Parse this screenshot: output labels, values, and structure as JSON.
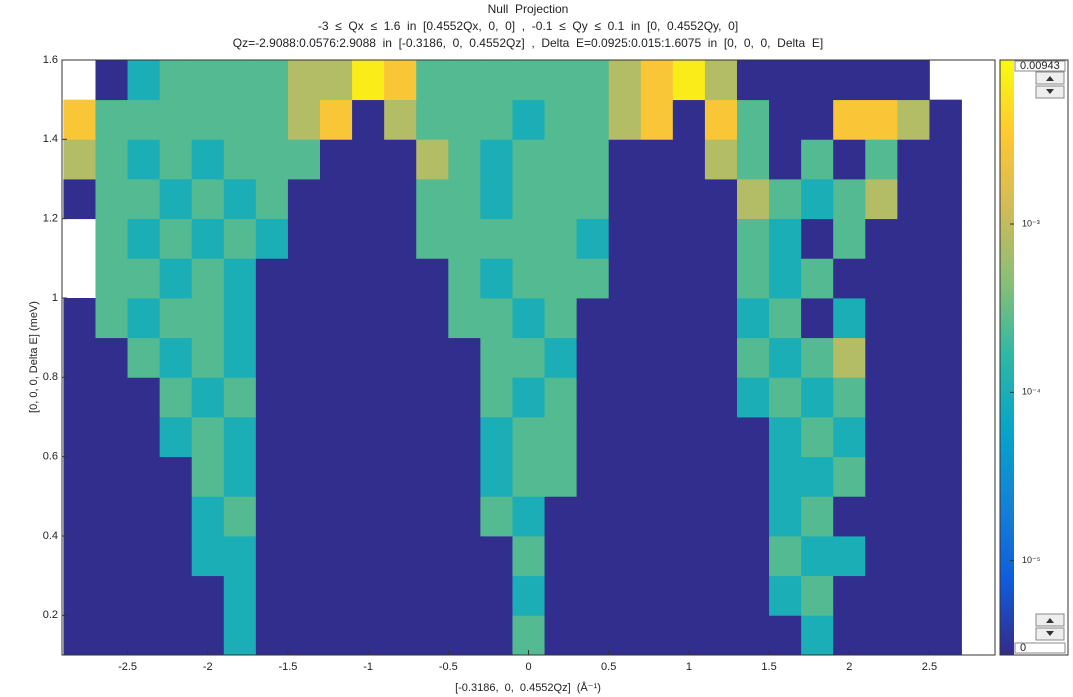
{
  "chart_data": {
    "type": "heatmap",
    "title": "Null  Projection",
    "subtitle": [
      "-3  ≤  Qx  ≤  1.6  in  [0.4552Qx,  0,  0]  ,  -0.1  ≤  Qy  ≤  0.1  in  [0,  0.4552Qy,  0]",
      "Qz=-2.9088:0.0576:2.9088  in  [-0.3186,  0,  0.4552Qz]  ,  Delta  E=0.0925:0.015:1.6075  in  [0,  0,  0,  Delta  E]"
    ],
    "x_label": "[-0.3186,  0,  0.4552Qz]  (Å⁻¹)",
    "y_label": "[0, 0, 0, Delta E] (meV)",
    "xlim": [
      -2.9088,
      2.9088
    ],
    "ylim": [
      0.1,
      1.6
    ],
    "xticks": [
      -2.5,
      -2,
      -1.5,
      -1,
      -0.5,
      0,
      0.5,
      1,
      1.5,
      2,
      2.5
    ],
    "yticks": [
      0.2,
      0.4,
      0.6,
      0.8,
      1,
      1.2,
      1.4,
      1.6
    ],
    "x_bins": [
      -2.9,
      -2.7,
      -2.5,
      -2.3,
      -2.1,
      -1.9,
      -1.7,
      -1.5,
      -1.3,
      -1.1,
      -0.9,
      -0.7,
      -0.5,
      -0.3,
      -0.1,
      0.1,
      0.3,
      0.5,
      0.7,
      0.9,
      1.1,
      1.3,
      1.5,
      1.7,
      1.9,
      2.1,
      2.3,
      2.5,
      2.7,
      2.9
    ],
    "y_bins": [
      0.1,
      0.2,
      0.3,
      0.4,
      0.5,
      0.6,
      0.7,
      0.8,
      0.9,
      1.0,
      1.1,
      1.2,
      1.3,
      1.4,
      1.5,
      1.6
    ],
    "values": [
      [
        3e-06,
        3e-06,
        3e-06,
        3e-06,
        3e-06,
        0.0001,
        3e-06,
        3e-06,
        3e-06,
        3e-06,
        3e-06,
        3e-06,
        3e-06,
        3e-06,
        0.00025,
        3e-06,
        3e-06,
        3e-06,
        3e-06,
        3e-06,
        3e-06,
        3e-06,
        3e-06,
        0.0001,
        3e-06,
        3e-06,
        3e-06,
        3e-06,
        null
      ],
      [
        3e-06,
        3e-06,
        3e-06,
        3e-06,
        3e-06,
        0.0001,
        3e-06,
        3e-06,
        3e-06,
        3e-06,
        3e-06,
        3e-06,
        3e-06,
        3e-06,
        0.0001,
        3e-06,
        3e-06,
        3e-06,
        3e-06,
        3e-06,
        3e-06,
        3e-06,
        0.0001,
        0.00025,
        3e-06,
        3e-06,
        3e-06,
        3e-06,
        null
      ],
      [
        3e-06,
        3e-06,
        3e-06,
        3e-06,
        0.0001,
        0.0001,
        3e-06,
        3e-06,
        3e-06,
        3e-06,
        3e-06,
        3e-06,
        3e-06,
        3e-06,
        0.00025,
        3e-06,
        3e-06,
        3e-06,
        3e-06,
        3e-06,
        3e-06,
        3e-06,
        0.00025,
        0.0001,
        0.0001,
        3e-06,
        3e-06,
        3e-06,
        null
      ],
      [
        3e-06,
        3e-06,
        3e-06,
        3e-06,
        0.0001,
        0.00025,
        3e-06,
        3e-06,
        3e-06,
        3e-06,
        3e-06,
        3e-06,
        3e-06,
        0.00025,
        0.0001,
        3e-06,
        3e-06,
        3e-06,
        3e-06,
        3e-06,
        3e-06,
        3e-06,
        0.0001,
        0.00025,
        3e-06,
        3e-06,
        3e-06,
        3e-06,
        null
      ],
      [
        3e-06,
        3e-06,
        3e-06,
        3e-06,
        0.00025,
        0.0001,
        3e-06,
        3e-06,
        3e-06,
        3e-06,
        3e-06,
        3e-06,
        3e-06,
        0.0001,
        0.00025,
        0.00025,
        3e-06,
        3e-06,
        3e-06,
        3e-06,
        3e-06,
        3e-06,
        0.0001,
        0.0001,
        0.00025,
        3e-06,
        3e-06,
        3e-06,
        null
      ],
      [
        3e-06,
        3e-06,
        3e-06,
        0.0001,
        0.00025,
        0.0001,
        3e-06,
        3e-06,
        3e-06,
        3e-06,
        3e-06,
        3e-06,
        3e-06,
        0.0001,
        0.00025,
        0.00025,
        3e-06,
        3e-06,
        3e-06,
        3e-06,
        3e-06,
        3e-06,
        0.0001,
        0.00025,
        0.0001,
        3e-06,
        3e-06,
        3e-06,
        null
      ],
      [
        3e-06,
        3e-06,
        3e-06,
        0.00025,
        0.0001,
        0.00025,
        3e-06,
        3e-06,
        3e-06,
        3e-06,
        3e-06,
        3e-06,
        3e-06,
        0.00025,
        0.0001,
        0.00025,
        3e-06,
        3e-06,
        3e-06,
        3e-06,
        3e-06,
        0.0001,
        0.00025,
        0.0001,
        0.00025,
        3e-06,
        3e-06,
        3e-06,
        null
      ],
      [
        3e-06,
        3e-06,
        0.00025,
        0.0001,
        0.00025,
        0.0001,
        3e-06,
        3e-06,
        3e-06,
        3e-06,
        3e-06,
        3e-06,
        3e-06,
        0.00025,
        0.00025,
        0.0001,
        3e-06,
        3e-06,
        3e-06,
        3e-06,
        3e-06,
        0.00025,
        0.0001,
        0.00025,
        0.0008,
        3e-06,
        3e-06,
        3e-06,
        null
      ],
      [
        3e-06,
        0.00025,
        0.0001,
        0.00025,
        0.00025,
        0.0001,
        3e-06,
        3e-06,
        3e-06,
        3e-06,
        3e-06,
        3e-06,
        0.00025,
        0.00025,
        0.0001,
        0.00025,
        3e-06,
        3e-06,
        3e-06,
        3e-06,
        3e-06,
        0.0001,
        0.00025,
        3e-06,
        0.0001,
        3e-06,
        3e-06,
        3e-06,
        null
      ],
      [
        null,
        0.00025,
        0.00025,
        0.0001,
        0.00025,
        0.0001,
        3e-06,
        3e-06,
        3e-06,
        3e-06,
        3e-06,
        3e-06,
        0.00025,
        0.0001,
        0.00025,
        0.00025,
        0.00025,
        3e-06,
        3e-06,
        3e-06,
        3e-06,
        0.00025,
        0.0001,
        0.00025,
        3e-06,
        3e-06,
        3e-06,
        3e-06,
        null
      ],
      [
        null,
        0.00025,
        0.0001,
        0.00025,
        0.0001,
        0.00025,
        0.0001,
        3e-06,
        3e-06,
        3e-06,
        3e-06,
        0.00025,
        0.00025,
        0.00025,
        0.00025,
        0.00025,
        0.0001,
        3e-06,
        3e-06,
        3e-06,
        3e-06,
        0.00025,
        0.0001,
        3e-06,
        0.00025,
        3e-06,
        3e-06,
        3e-06,
        null
      ],
      [
        3e-06,
        0.00025,
        0.00025,
        0.0001,
        0.00025,
        0.0001,
        0.00025,
        3e-06,
        3e-06,
        3e-06,
        3e-06,
        0.00025,
        0.00025,
        0.0001,
        0.00025,
        0.00025,
        0.00025,
        3e-06,
        3e-06,
        3e-06,
        3e-06,
        0.0008,
        0.00025,
        0.0001,
        0.00025,
        0.0008,
        3e-06,
        3e-06,
        null
      ],
      [
        0.0008,
        0.00025,
        0.0001,
        0.00025,
        0.0001,
        0.00025,
        0.00025,
        0.00025,
        3e-06,
        3e-06,
        3e-06,
        0.0008,
        0.00025,
        0.0001,
        0.00025,
        0.00025,
        0.00025,
        3e-06,
        3e-06,
        3e-06,
        0.0008,
        0.00025,
        3e-06,
        0.00025,
        3e-06,
        0.00025,
        3e-06,
        3e-06,
        null
      ],
      [
        0.003,
        0.00025,
        0.00025,
        0.00025,
        0.00025,
        0.00025,
        0.00025,
        0.0008,
        0.003,
        3e-06,
        0.0008,
        0.00025,
        0.00025,
        0.00025,
        0.0001,
        0.00025,
        0.00025,
        0.0008,
        0.003,
        3e-06,
        0.003,
        0.00025,
        3e-06,
        3e-06,
        0.003,
        0.003,
        0.0008,
        3e-06,
        null
      ],
      [
        null,
        3e-06,
        0.0001,
        0.00025,
        0.00025,
        0.00025,
        0.00025,
        0.0008,
        0.0008,
        0.007,
        0.003,
        0.00025,
        0.00025,
        0.00025,
        0.00025,
        0.00025,
        0.00025,
        0.0008,
        0.003,
        0.007,
        0.0008,
        3e-06,
        3e-06,
        3e-06,
        3e-06,
        3e-06,
        3e-06,
        null,
        null
      ]
    ],
    "color_scale": "log",
    "clim": [
      2.75e-06,
      0.00943
    ],
    "colormap": [
      "#352a87",
      "#0f5cdd",
      "#1481d6",
      "#06a4ca",
      "#2eb7a4",
      "#87bf77",
      "#d1bb59",
      "#fec832",
      "#f9fb0e"
    ],
    "cticks": [
      {
        "value": 0.001,
        "label": "10⁻³"
      },
      {
        "value": 0.0001,
        "label": "10⁻⁴"
      },
      {
        "value": 1e-05,
        "label": "10⁻⁵"
      }
    ],
    "cmax_text": "0.00943",
    "cmin_text": "0"
  }
}
